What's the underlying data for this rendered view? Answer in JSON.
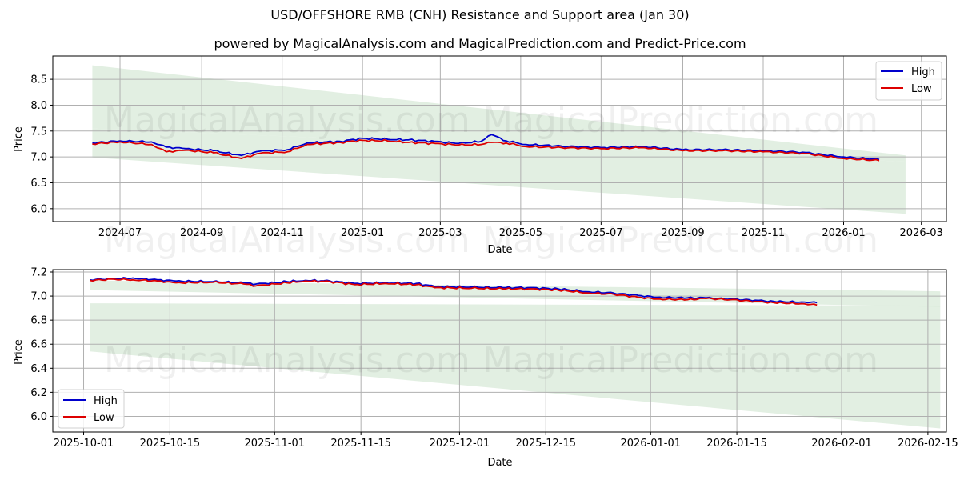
{
  "header": {
    "title": "USD/OFFSHORE RMB (CNH) Resistance and Support area (Jan 30)",
    "subtitle": "powered by MagicalAnalysis.com and MagicalPrediction.com and Predict-Price.com"
  },
  "watermarks": [
    "MagicalAnalysis.com",
    "MagicalPrediction.com"
  ],
  "colors": {
    "high": "#0000cc",
    "low": "#dd0000",
    "band": "#d8ead8",
    "grid": "#b0b0b0"
  },
  "chart_data": [
    {
      "type": "line",
      "title": "USD/OFFSHORE RMB (CNH) Resistance and Support area (Jan 30)",
      "xlabel": "Date",
      "ylabel": "Price",
      "ylim": [
        5.75,
        8.95
      ],
      "xlim": [
        "2024-05-11",
        "2026-03-20"
      ],
      "grid": true,
      "legend_position": "upper right",
      "x_ticks": [
        "2024-07",
        "2024-09",
        "2024-11",
        "2025-01",
        "2025-03",
        "2025-05",
        "2025-07",
        "2025-09",
        "2025-11",
        "2026-01",
        "2026-03"
      ],
      "y_ticks": [
        "6.0",
        "6.5",
        "7.0",
        "7.5",
        "8.0",
        "8.5"
      ],
      "legend": [
        "High",
        "Low"
      ],
      "x": [
        "2024-06-10",
        "2024-07-01",
        "2024-07-25",
        "2024-08-05",
        "2024-08-20",
        "2024-09-10",
        "2024-10-01",
        "2024-10-15",
        "2024-11-05",
        "2024-11-20",
        "2024-12-15",
        "2025-01-01",
        "2025-01-20",
        "2025-02-05",
        "2025-02-25",
        "2025-03-15",
        "2025-04-01",
        "2025-04-09",
        "2025-04-20",
        "2025-05-05",
        "2025-06-01",
        "2025-07-01",
        "2025-08-01",
        "2025-09-01",
        "2025-10-01",
        "2025-11-01",
        "2025-12-01",
        "2026-01-01",
        "2026-01-28"
      ],
      "series": [
        {
          "name": "High",
          "values": [
            7.27,
            7.31,
            7.29,
            7.19,
            7.16,
            7.12,
            7.03,
            7.11,
            7.14,
            7.27,
            7.3,
            7.36,
            7.34,
            7.33,
            7.3,
            7.26,
            7.3,
            7.43,
            7.31,
            7.24,
            7.21,
            7.18,
            7.2,
            7.14,
            7.14,
            7.12,
            7.09,
            7.0,
            6.95
          ]
        },
        {
          "name": "Low",
          "values": [
            7.25,
            7.29,
            7.24,
            7.1,
            7.13,
            7.08,
            6.97,
            7.07,
            7.1,
            7.24,
            7.28,
            7.32,
            7.31,
            7.28,
            7.26,
            7.23,
            7.24,
            7.28,
            7.27,
            7.2,
            7.18,
            7.16,
            7.18,
            7.12,
            7.12,
            7.1,
            7.07,
            6.97,
            6.93
          ]
        }
      ],
      "bands": [
        {
          "name": "Resistance area",
          "x_start": "2024-06-10",
          "x_end": "2026-02-17",
          "upper_start": 8.77,
          "upper_end": 7.03,
          "lower_start": 7.55,
          "lower_end": 6.91
        },
        {
          "name": "Support area",
          "x_start": "2024-06-10",
          "x_end": "2026-02-17",
          "upper_start": 7.55,
          "upper_end": 6.91,
          "lower_start": 6.99,
          "lower_end": 5.9
        }
      ]
    },
    {
      "type": "line",
      "xlabel": "Date",
      "ylabel": "Price",
      "ylim": [
        5.87,
        7.22
      ],
      "xlim": [
        "2025-09-26",
        "2026-02-18"
      ],
      "grid": true,
      "legend_position": "lower left",
      "x_ticks": [
        "2025-10-01",
        "2025-10-15",
        "2025-11-01",
        "2025-11-15",
        "2025-12-01",
        "2025-12-15",
        "2026-01-01",
        "2026-01-15",
        "2026-02-01",
        "2026-02-15"
      ],
      "y_ticks": [
        "6.0",
        "6.2",
        "6.4",
        "6.6",
        "6.8",
        "7.0",
        "7.2"
      ],
      "legend": [
        "High",
        "Low"
      ],
      "x": [
        "2025-10-02",
        "2025-10-06",
        "2025-10-09",
        "2025-10-13",
        "2025-10-16",
        "2025-10-22",
        "2025-10-27",
        "2025-10-29",
        "2025-11-03",
        "2025-11-06",
        "2025-11-10",
        "2025-11-14",
        "2025-11-19",
        "2025-11-24",
        "2025-11-27",
        "2025-12-03",
        "2025-12-08",
        "2025-12-12",
        "2025-12-17",
        "2025-12-22",
        "2025-12-26",
        "2025-12-30",
        "2026-01-02",
        "2026-01-07",
        "2026-01-10",
        "2026-01-14",
        "2026-01-18",
        "2026-01-21",
        "2026-01-26",
        "2026-01-28"
      ],
      "series": [
        {
          "name": "High",
          "values": [
            7.135,
            7.145,
            7.15,
            7.135,
            7.125,
            7.12,
            7.11,
            7.1,
            7.12,
            7.13,
            7.125,
            7.105,
            7.11,
            7.105,
            7.08,
            7.075,
            7.07,
            7.07,
            7.06,
            7.035,
            7.025,
            7.005,
            6.99,
            6.985,
            6.985,
            6.975,
            6.965,
            6.955,
            6.95,
            6.945
          ]
        },
        {
          "name": "Low",
          "values": [
            7.13,
            7.14,
            7.135,
            7.125,
            7.11,
            7.115,
            7.1,
            7.085,
            7.11,
            7.125,
            7.12,
            7.095,
            7.105,
            7.095,
            7.07,
            7.065,
            7.06,
            7.06,
            7.05,
            7.025,
            7.015,
            6.99,
            6.975,
            6.97,
            6.98,
            6.97,
            6.955,
            6.945,
            6.935,
            6.925
          ]
        }
      ],
      "bands": [
        {
          "name": "Resistance area",
          "x_start": "2025-10-02",
          "x_end": "2026-02-17",
          "upper_start": 7.13,
          "upper_end": 7.04,
          "lower_start": 7.05,
          "lower_end": 6.91
        },
        {
          "name": "Support area",
          "x_start": "2025-10-02",
          "x_end": "2026-02-17",
          "upper_start": 6.94,
          "upper_end": 6.92,
          "lower_start": 6.54,
          "lower_end": 5.9
        }
      ]
    }
  ]
}
